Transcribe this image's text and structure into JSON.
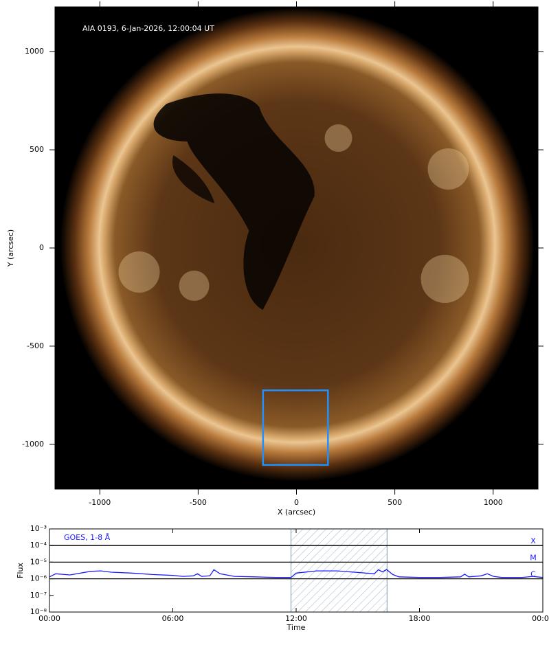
{
  "chart_data": [
    {
      "type": "image",
      "title": "AIA 0193, 6-Jan-2026, 12:00:04 UT",
      "xlabel": "X (arcsec)",
      "ylabel": "Y (arcsec)",
      "xlim": [
        -1228,
        1228
      ],
      "ylim": [
        -1228,
        1228
      ],
      "xticks": [
        -1000,
        -500,
        0,
        500,
        1000
      ],
      "yticks": [
        -1000,
        -500,
        0,
        500,
        1000
      ],
      "box": {
        "x": [
          -170,
          160
        ],
        "y": [
          -1105,
          -725
        ],
        "color": "#1e90ff"
      }
    },
    {
      "type": "line",
      "xlabel": "Time",
      "ylabel": "Flux",
      "log_y": true,
      "xlim": [
        0,
        24
      ],
      "ylim": [
        1e-08,
        0.001
      ],
      "xticks": [
        {
          "value": 0,
          "label": "00:00"
        },
        {
          "value": 6,
          "label": "06:00"
        },
        {
          "value": 12,
          "label": "12:00"
        },
        {
          "value": 18,
          "label": "18:00"
        },
        {
          "value": 24,
          "label": "00:00"
        }
      ],
      "yticks": [
        {
          "value": 1e-08,
          "label": "10⁻⁸"
        },
        {
          "value": 1e-07,
          "label": "10⁻⁷"
        },
        {
          "value": 1e-06,
          "label": "10⁻⁶"
        },
        {
          "value": 1e-05,
          "label": "10⁻⁵"
        },
        {
          "value": 0.0001,
          "label": "10⁻⁴"
        },
        {
          "value": 0.001,
          "label": "10⁻³"
        }
      ],
      "levels": [
        {
          "value": 0.0001,
          "label": "X"
        },
        {
          "value": 1e-05,
          "label": "M"
        },
        {
          "value": 1e-06,
          "label": "C"
        }
      ],
      "shade": [
        11.75,
        16.42
      ],
      "x": [
        0,
        0.3,
        1,
        2,
        2.5,
        3,
        4,
        5,
        6,
        6.5,
        7,
        7.2,
        7.4,
        7.8,
        8.0,
        8.3,
        9,
        10,
        11,
        11.75,
        12,
        13,
        14,
        15,
        15.8,
        16.0,
        16.2,
        16.4,
        16.7,
        17,
        18,
        19,
        20,
        20.2,
        20.4,
        21,
        21.3,
        21.6,
        22,
        23,
        23.5,
        24
      ],
      "series": [
        {
          "name": "GOES, 1-8 Å",
          "color": "#1a1aff",
          "values": [
            1.3e-06,
            2e-06,
            1.7e-06,
            2.8e-06,
            3e-06,
            2.5e-06,
            2.2e-06,
            1.8e-06,
            1.6e-06,
            1.4e-06,
            1.5e-06,
            2e-06,
            1.4e-06,
            1.5e-06,
            3.5e-06,
            2e-06,
            1.4e-06,
            1.3e-06,
            1.2e-06,
            1.2e-06,
            2.2e-06,
            3e-06,
            3e-06,
            2.4e-06,
            2e-06,
            3.5e-06,
            2.6e-06,
            3.6e-06,
            1.8e-06,
            1.3e-06,
            1.2e-06,
            1.2e-06,
            1.3e-06,
            1.9e-06,
            1.3e-06,
            1.5e-06,
            2e-06,
            1.4e-06,
            1.2e-06,
            1.2e-06,
            1.4e-06,
            1.2e-06
          ]
        }
      ]
    }
  ]
}
